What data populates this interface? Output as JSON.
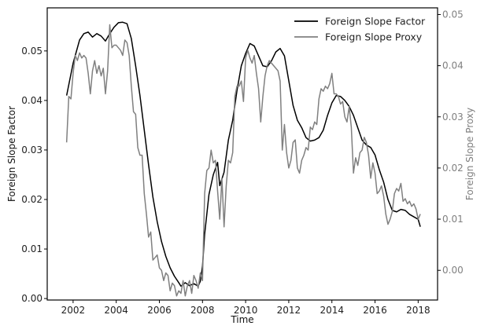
{
  "chart_data": {
    "type": "line",
    "xlabel": "Time",
    "ylabel": "Foreign Slope Factor",
    "y2label": "Foreign Slope Proxy",
    "xlim": [
      2000.8,
      2018.9
    ],
    "ylim": [
      -0.0003,
      0.0587
    ],
    "y2lim": [
      -0.0058,
      0.0513
    ],
    "xticks": [
      2002,
      2004,
      2006,
      2008,
      2010,
      2012,
      2014,
      2016,
      2018
    ],
    "xtick_labels": [
      "2002",
      "2004",
      "2006",
      "2008",
      "2010",
      "2012",
      "2014",
      "2016",
      "2018"
    ],
    "yticks": [
      0.0,
      0.01,
      0.02,
      0.03,
      0.04,
      0.05
    ],
    "ytick_labels": [
      "0.00",
      "0.01",
      "0.02",
      "0.03",
      "0.04",
      "0.05"
    ],
    "y2ticks": [
      0.0,
      0.01,
      0.02,
      0.03,
      0.04,
      0.05
    ],
    "y2tick_labels": [
      "0.00",
      "0.01",
      "0.02",
      "0.03",
      "0.04",
      "0.05"
    ],
    "grid": false,
    "legend_position": "top-right",
    "series": [
      {
        "name": "Foreign Slope Factor",
        "axis": "left",
        "color": "#000000",
        "points": [
          [
            2001.7,
            0.041
          ],
          [
            2002.0,
            0.0475
          ],
          [
            2002.3,
            0.0522
          ],
          [
            2002.5,
            0.0535
          ],
          [
            2002.7,
            0.0538
          ],
          [
            2002.9,
            0.0528
          ],
          [
            2003.1,
            0.0535
          ],
          [
            2003.3,
            0.053
          ],
          [
            2003.5,
            0.052
          ],
          [
            2003.7,
            0.0535
          ],
          [
            2003.9,
            0.0548
          ],
          [
            2004.1,
            0.0557
          ],
          [
            2004.3,
            0.0558
          ],
          [
            2004.5,
            0.0555
          ],
          [
            2004.7,
            0.0525
          ],
          [
            2004.9,
            0.047
          ],
          [
            2005.1,
            0.041
          ],
          [
            2005.3,
            0.034
          ],
          [
            2005.5,
            0.027
          ],
          [
            2005.7,
            0.0205
          ],
          [
            2005.9,
            0.0155
          ],
          [
            2006.1,
            0.0115
          ],
          [
            2006.3,
            0.0085
          ],
          [
            2006.5,
            0.0062
          ],
          [
            2006.7,
            0.0045
          ],
          [
            2006.9,
            0.0032
          ],
          [
            2007.0,
            0.0025
          ],
          [
            2007.2,
            0.0032
          ],
          [
            2007.4,
            0.0026
          ],
          [
            2007.6,
            0.003
          ],
          [
            2007.8,
            0.0025
          ],
          [
            2007.9,
            0.0035
          ],
          [
            2008.0,
            0.0065
          ],
          [
            2008.1,
            0.013
          ],
          [
            2008.3,
            0.021
          ],
          [
            2008.5,
            0.025
          ],
          [
            2008.7,
            0.0275
          ],
          [
            2008.8,
            0.0228
          ],
          [
            2009.0,
            0.0255
          ],
          [
            2009.2,
            0.032
          ],
          [
            2009.4,
            0.036
          ],
          [
            2009.6,
            0.042
          ],
          [
            2009.8,
            0.047
          ],
          [
            2010.0,
            0.0495
          ],
          [
            2010.2,
            0.0515
          ],
          [
            2010.4,
            0.051
          ],
          [
            2010.6,
            0.049
          ],
          [
            2010.8,
            0.047
          ],
          [
            2011.0,
            0.0468
          ],
          [
            2011.2,
            0.048
          ],
          [
            2011.4,
            0.0498
          ],
          [
            2011.6,
            0.0505
          ],
          [
            2011.8,
            0.049
          ],
          [
            2012.0,
            0.044
          ],
          [
            2012.2,
            0.039
          ],
          [
            2012.4,
            0.036
          ],
          [
            2012.6,
            0.0345
          ],
          [
            2012.8,
            0.0325
          ],
          [
            2013.0,
            0.0318
          ],
          [
            2013.2,
            0.032
          ],
          [
            2013.4,
            0.0325
          ],
          [
            2013.6,
            0.034
          ],
          [
            2013.8,
            0.037
          ],
          [
            2014.0,
            0.0395
          ],
          [
            2014.2,
            0.041
          ],
          [
            2014.4,
            0.0408
          ],
          [
            2014.6,
            0.04
          ],
          [
            2014.8,
            0.0388
          ],
          [
            2015.0,
            0.037
          ],
          [
            2015.2,
            0.0345
          ],
          [
            2015.4,
            0.032
          ],
          [
            2015.6,
            0.031
          ],
          [
            2015.8,
            0.0305
          ],
          [
            2016.0,
            0.029
          ],
          [
            2016.2,
            0.026
          ],
          [
            2016.4,
            0.0235
          ],
          [
            2016.6,
            0.02
          ],
          [
            2016.8,
            0.0178
          ],
          [
            2017.0,
            0.0175
          ],
          [
            2017.2,
            0.018
          ],
          [
            2017.4,
            0.0178
          ],
          [
            2017.6,
            0.017
          ],
          [
            2017.8,
            0.0165
          ],
          [
            2018.0,
            0.016
          ],
          [
            2018.1,
            0.0145
          ]
        ]
      },
      {
        "name": "Foreign Slope Proxy",
        "axis": "right",
        "color": "#808080",
        "points": [
          [
            2001.7,
            0.025
          ],
          [
            2001.8,
            0.034
          ],
          [
            2001.9,
            0.0335
          ],
          [
            2002.0,
            0.0385
          ],
          [
            2002.1,
            0.042
          ],
          [
            2002.2,
            0.041
          ],
          [
            2002.3,
            0.0425
          ],
          [
            2002.4,
            0.0415
          ],
          [
            2002.5,
            0.042
          ],
          [
            2002.6,
            0.0415
          ],
          [
            2002.7,
            0.0385
          ],
          [
            2002.8,
            0.0345
          ],
          [
            2002.9,
            0.039
          ],
          [
            2003.0,
            0.041
          ],
          [
            2003.1,
            0.0385
          ],
          [
            2003.2,
            0.04
          ],
          [
            2003.3,
            0.038
          ],
          [
            2003.4,
            0.0395
          ],
          [
            2003.5,
            0.0345
          ],
          [
            2003.6,
            0.039
          ],
          [
            2003.7,
            0.048
          ],
          [
            2003.8,
            0.0435
          ],
          [
            2003.9,
            0.044
          ],
          [
            2004.0,
            0.044
          ],
          [
            2004.1,
            0.0435
          ],
          [
            2004.2,
            0.043
          ],
          [
            2004.3,
            0.042
          ],
          [
            2004.4,
            0.045
          ],
          [
            2004.5,
            0.0445
          ],
          [
            2004.6,
            0.042
          ],
          [
            2004.7,
            0.036
          ],
          [
            2004.8,
            0.031
          ],
          [
            2004.9,
            0.0305
          ],
          [
            2005.0,
            0.024
          ],
          [
            2005.1,
            0.0225
          ],
          [
            2005.2,
            0.0225
          ],
          [
            2005.3,
            0.015
          ],
          [
            2005.4,
            0.011
          ],
          [
            2005.5,
            0.0065
          ],
          [
            2005.6,
            0.0075
          ],
          [
            2005.7,
            0.002
          ],
          [
            2005.8,
            0.0025
          ],
          [
            2005.9,
            0.003
          ],
          [
            2006.0,
            0.0005
          ],
          [
            2006.1,
            0.0
          ],
          [
            2006.2,
            -0.002
          ],
          [
            2006.3,
            -0.0005
          ],
          [
            2006.4,
            -0.001
          ],
          [
            2006.5,
            -0.004
          ],
          [
            2006.6,
            -0.0025
          ],
          [
            2006.7,
            -0.003
          ],
          [
            2006.8,
            -0.005
          ],
          [
            2006.9,
            -0.004
          ],
          [
            2007.0,
            -0.0045
          ],
          [
            2007.1,
            -0.002
          ],
          [
            2007.2,
            -0.005
          ],
          [
            2007.3,
            -0.003
          ],
          [
            2007.4,
            -0.002
          ],
          [
            2007.5,
            -0.0045
          ],
          [
            2007.6,
            -0.001
          ],
          [
            2007.7,
            -0.002
          ],
          [
            2007.8,
            -0.0035
          ],
          [
            2007.9,
            -0.0005
          ],
          [
            2008.0,
            -0.002
          ],
          [
            2008.1,
            0.015
          ],
          [
            2008.2,
            0.0195
          ],
          [
            2008.3,
            0.02
          ],
          [
            2008.4,
            0.0235
          ],
          [
            2008.5,
            0.021
          ],
          [
            2008.6,
            0.0215
          ],
          [
            2008.7,
            0.0155
          ],
          [
            2008.8,
            0.01
          ],
          [
            2008.9,
            0.018
          ],
          [
            2009.0,
            0.0085
          ],
          [
            2009.1,
            0.0165
          ],
          [
            2009.2,
            0.0215
          ],
          [
            2009.3,
            0.021
          ],
          [
            2009.4,
            0.023
          ],
          [
            2009.5,
            0.034
          ],
          [
            2009.6,
            0.036
          ],
          [
            2009.7,
            0.036
          ],
          [
            2009.8,
            0.037
          ],
          [
            2009.9,
            0.033
          ],
          [
            2010.0,
            0.0415
          ],
          [
            2010.1,
            0.043
          ],
          [
            2010.2,
            0.0415
          ],
          [
            2010.3,
            0.0405
          ],
          [
            2010.4,
            0.042
          ],
          [
            2010.5,
            0.0385
          ],
          [
            2010.6,
            0.0355
          ],
          [
            2010.7,
            0.029
          ],
          [
            2010.8,
            0.034
          ],
          [
            2010.9,
            0.038
          ],
          [
            2011.0,
            0.04
          ],
          [
            2011.1,
            0.041
          ],
          [
            2011.2,
            0.0405
          ],
          [
            2011.3,
            0.04
          ],
          [
            2011.4,
            0.0395
          ],
          [
            2011.5,
            0.039
          ],
          [
            2011.6,
            0.037
          ],
          [
            2011.7,
            0.0235
          ],
          [
            2011.8,
            0.0285
          ],
          [
            2011.9,
            0.023
          ],
          [
            2012.0,
            0.02
          ],
          [
            2012.1,
            0.0215
          ],
          [
            2012.2,
            0.025
          ],
          [
            2012.3,
            0.0255
          ],
          [
            2012.4,
            0.02
          ],
          [
            2012.5,
            0.019
          ],
          [
            2012.6,
            0.0215
          ],
          [
            2012.7,
            0.0225
          ],
          [
            2012.8,
            0.024
          ],
          [
            2012.9,
            0.0235
          ],
          [
            2013.0,
            0.028
          ],
          [
            2013.1,
            0.0275
          ],
          [
            2013.2,
            0.029
          ],
          [
            2013.3,
            0.0285
          ],
          [
            2013.4,
            0.0335
          ],
          [
            2013.5,
            0.0355
          ],
          [
            2013.6,
            0.035
          ],
          [
            2013.7,
            0.036
          ],
          [
            2013.8,
            0.0355
          ],
          [
            2013.9,
            0.0365
          ],
          [
            2014.0,
            0.0385
          ],
          [
            2014.1,
            0.0345
          ],
          [
            2014.2,
            0.0345
          ],
          [
            2014.3,
            0.034
          ],
          [
            2014.4,
            0.0325
          ],
          [
            2014.5,
            0.033
          ],
          [
            2014.6,
            0.03
          ],
          [
            2014.7,
            0.029
          ],
          [
            2014.8,
            0.032
          ],
          [
            2014.9,
            0.028
          ],
          [
            2015.0,
            0.019
          ],
          [
            2015.1,
            0.022
          ],
          [
            2015.2,
            0.0205
          ],
          [
            2015.3,
            0.023
          ],
          [
            2015.4,
            0.0235
          ],
          [
            2015.5,
            0.026
          ],
          [
            2015.6,
            0.025
          ],
          [
            2015.7,
            0.0225
          ],
          [
            2015.8,
            0.018
          ],
          [
            2015.9,
            0.021
          ],
          [
            2016.0,
            0.019
          ],
          [
            2016.1,
            0.015
          ],
          [
            2016.2,
            0.0155
          ],
          [
            2016.3,
            0.0165
          ],
          [
            2016.4,
            0.0145
          ],
          [
            2016.5,
            0.011
          ],
          [
            2016.6,
            0.009
          ],
          [
            2016.7,
            0.01
          ],
          [
            2016.8,
            0.0115
          ],
          [
            2016.9,
            0.015
          ],
          [
            2017.0,
            0.016
          ],
          [
            2017.1,
            0.0155
          ],
          [
            2017.2,
            0.017
          ],
          [
            2017.3,
            0.0135
          ],
          [
            2017.4,
            0.014
          ],
          [
            2017.5,
            0.013
          ],
          [
            2017.6,
            0.0135
          ],
          [
            2017.7,
            0.0125
          ],
          [
            2017.8,
            0.013
          ],
          [
            2017.9,
            0.012
          ],
          [
            2018.0,
            0.01
          ],
          [
            2018.1,
            0.011
          ]
        ]
      }
    ]
  }
}
